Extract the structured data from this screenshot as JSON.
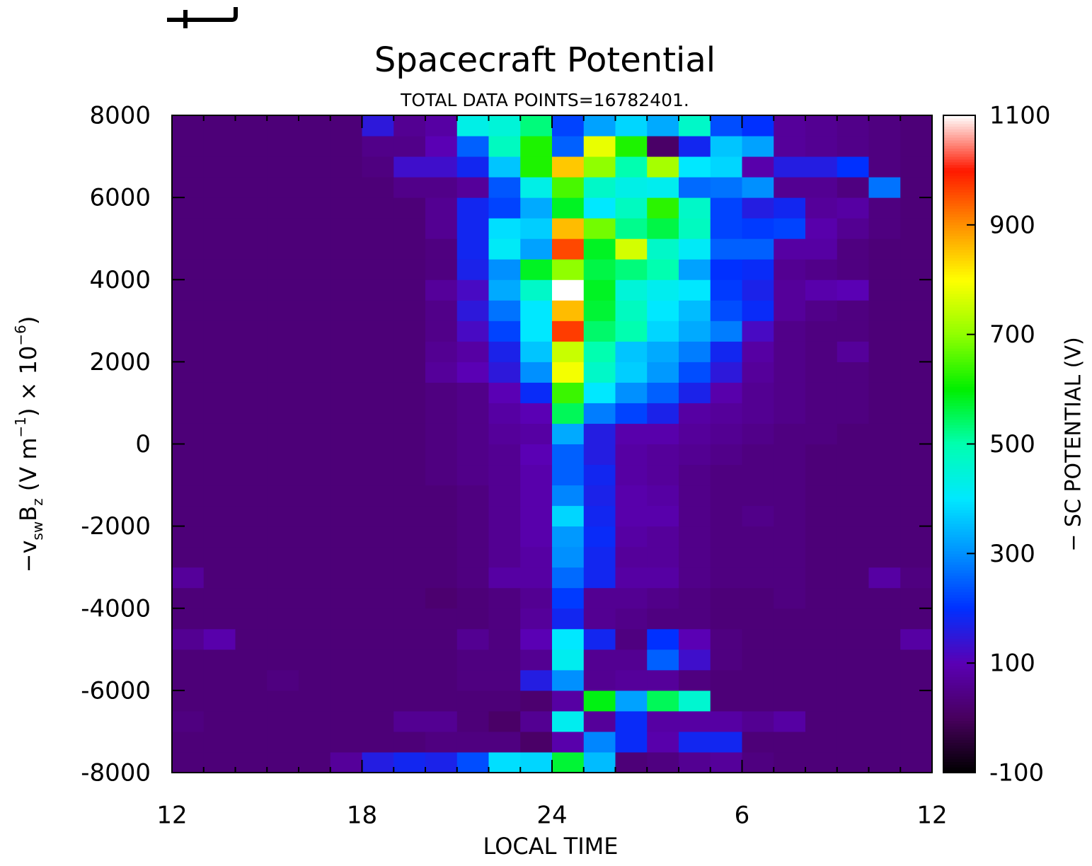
{
  "chart_data": {
    "type": "heatmap",
    "title": "Spacecraft Potential",
    "subtitle": "TOTAL DATA POINTS=16782401.",
    "xlabel": "LOCAL TIME",
    "ylabel": [
      "−v",
      "sw",
      "B",
      "z",
      " (V m",
      "−1",
      ") × 10",
      "−6",
      ")"
    ],
    "colorbar_label": "− SC POTENTIAL (V)",
    "xlim": [
      12,
      36
    ],
    "xticks": [
      12,
      18,
      24,
      {
        "value": 30,
        "label": "6"
      },
      {
        "value": 36,
        "label": "12"
      }
    ],
    "ylim": [
      -8000,
      8000
    ],
    "yticks": [
      -8000,
      -6000,
      -4000,
      -2000,
      0,
      2000,
      4000,
      6000,
      8000
    ],
    "zlim": [
      -100,
      1100
    ],
    "zticks": [
      -100,
      100,
      300,
      500,
      700,
      900,
      1100
    ],
    "colorscale": [
      "#000000",
      "#48005e",
      "#5a00b4",
      "#0030ff",
      "#0090ff",
      "#00e8ff",
      "#00ffb0",
      "#00f000",
      "#90ff00",
      "#ffff00",
      "#ff9000",
      "#ff1800",
      "#ffffff"
    ],
    "xbins": [
      12,
      13,
      14,
      15,
      16,
      17,
      18,
      19,
      20,
      21,
      22,
      23,
      24,
      25,
      26,
      27,
      28,
      29,
      30,
      31,
      32,
      33,
      34,
      35,
      36
    ],
    "ybins": [
      -8000,
      -7500,
      -7000,
      -6500,
      -6000,
      -5500,
      -5000,
      -4500,
      -4000,
      -3500,
      -3000,
      -2500,
      -2000,
      -1500,
      -1000,
      -500,
      0,
      500,
      1000,
      1500,
      2000,
      2500,
      3000,
      3500,
      4000,
      4500,
      5000,
      5500,
      6000,
      6500,
      7000,
      7500,
      8000
    ],
    "z": [
      [
        30,
        30,
        30,
        30,
        30,
        70,
        160,
        180,
        170,
        230,
        390,
        380,
        570,
        350,
        30,
        40,
        60,
        70,
        40,
        30,
        30,
        30,
        30,
        30
      ],
      [
        30,
        30,
        30,
        30,
        30,
        30,
        30,
        30,
        40,
        40,
        40,
        10,
        90,
        290,
        190,
        90,
        180,
        180,
        30,
        30,
        30,
        30,
        30,
        30
      ],
      [
        40,
        30,
        30,
        30,
        30,
        30,
        30,
        60,
        60,
        30,
        10,
        60,
        420,
        70,
        190,
        80,
        80,
        80,
        60,
        80,
        30,
        30,
        30,
        30
      ],
      [
        30,
        30,
        30,
        30,
        30,
        30,
        30,
        30,
        30,
        30,
        30,
        20,
        80,
        590,
        320,
        550,
        460,
        30,
        30,
        30,
        30,
        30,
        30,
        30
      ],
      [
        30,
        30,
        30,
        40,
        30,
        30,
        30,
        30,
        30,
        40,
        40,
        160,
        300,
        60,
        70,
        70,
        40,
        30,
        30,
        30,
        30,
        30,
        30,
        30
      ],
      [
        30,
        30,
        30,
        30,
        30,
        30,
        30,
        30,
        30,
        40,
        40,
        60,
        420,
        60,
        60,
        250,
        130,
        40,
        30,
        30,
        30,
        30,
        30,
        30
      ],
      [
        60,
        90,
        30,
        30,
        30,
        30,
        30,
        30,
        30,
        60,
        40,
        100,
        400,
        180,
        40,
        200,
        100,
        40,
        30,
        30,
        30,
        30,
        30,
        80
      ],
      [
        30,
        30,
        30,
        30,
        30,
        30,
        30,
        30,
        30,
        30,
        40,
        70,
        180,
        60,
        50,
        40,
        40,
        30,
        30,
        30,
        30,
        30,
        30,
        30
      ],
      [
        30,
        30,
        30,
        30,
        30,
        30,
        30,
        30,
        20,
        30,
        40,
        60,
        210,
        60,
        60,
        50,
        40,
        30,
        30,
        40,
        30,
        30,
        30,
        30
      ],
      [
        70,
        30,
        30,
        30,
        30,
        30,
        30,
        30,
        30,
        40,
        80,
        80,
        260,
        180,
        80,
        80,
        50,
        40,
        40,
        40,
        30,
        30,
        80,
        40
      ],
      [
        30,
        30,
        30,
        30,
        30,
        30,
        30,
        30,
        30,
        40,
        60,
        80,
        300,
        180,
        70,
        70,
        50,
        40,
        40,
        40,
        30,
        30,
        30,
        30
      ],
      [
        30,
        30,
        30,
        30,
        30,
        30,
        30,
        30,
        30,
        40,
        60,
        90,
        310,
        190,
        80,
        70,
        50,
        40,
        40,
        40,
        30,
        30,
        30,
        30
      ],
      [
        30,
        30,
        30,
        30,
        30,
        30,
        30,
        30,
        30,
        40,
        60,
        90,
        380,
        180,
        90,
        90,
        50,
        40,
        50,
        40,
        30,
        30,
        30,
        30
      ],
      [
        30,
        30,
        30,
        30,
        30,
        30,
        30,
        30,
        30,
        40,
        60,
        90,
        290,
        170,
        90,
        80,
        50,
        40,
        40,
        40,
        30,
        30,
        30,
        30
      ],
      [
        30,
        30,
        30,
        30,
        30,
        30,
        30,
        30,
        40,
        50,
        60,
        90,
        250,
        180,
        80,
        70,
        50,
        40,
        40,
        40,
        30,
        30,
        30,
        30
      ],
      [
        30,
        30,
        30,
        30,
        30,
        30,
        30,
        30,
        40,
        50,
        60,
        100,
        250,
        160,
        80,
        70,
        60,
        50,
        40,
        40,
        30,
        30,
        30,
        30
      ],
      [
        30,
        30,
        30,
        30,
        30,
        30,
        30,
        30,
        40,
        50,
        70,
        80,
        330,
        160,
        90,
        90,
        70,
        60,
        50,
        40,
        40,
        30,
        30,
        30
      ],
      [
        30,
        30,
        30,
        30,
        30,
        30,
        30,
        30,
        40,
        50,
        80,
        100,
        550,
        280,
        220,
        170,
        80,
        70,
        60,
        50,
        40,
        40,
        30,
        30
      ],
      [
        30,
        30,
        30,
        30,
        30,
        30,
        30,
        30,
        40,
        50,
        100,
        190,
        640,
        400,
        300,
        250,
        170,
        90,
        60,
        50,
        40,
        40,
        30,
        30
      ],
      [
        30,
        30,
        30,
        30,
        30,
        30,
        30,
        30,
        70,
        100,
        150,
        300,
        790,
        470,
        370,
        310,
        230,
        150,
        70,
        50,
        40,
        40,
        30,
        30
      ],
      [
        30,
        30,
        30,
        30,
        30,
        30,
        30,
        30,
        60,
        80,
        170,
        360,
        750,
        500,
        360,
        330,
        280,
        180,
        80,
        50,
        40,
        70,
        30,
        30
      ],
      [
        30,
        30,
        30,
        30,
        30,
        30,
        30,
        30,
        50,
        120,
        220,
        400,
        970,
        540,
        500,
        380,
        330,
        280,
        120,
        50,
        40,
        40,
        30,
        30
      ],
      [
        30,
        30,
        30,
        30,
        30,
        30,
        30,
        30,
        50,
        150,
        270,
        400,
        860,
        570,
        480,
        400,
        350,
        230,
        190,
        70,
        50,
        40,
        30,
        30
      ],
      [
        30,
        30,
        30,
        30,
        30,
        30,
        30,
        30,
        70,
        120,
        330,
        470,
        1100,
        580,
        450,
        420,
        400,
        210,
        170,
        70,
        90,
        100,
        30,
        30
      ],
      [
        30,
        30,
        30,
        30,
        30,
        30,
        30,
        30,
        40,
        170,
        300,
        580,
        700,
        560,
        530,
        500,
        320,
        200,
        190,
        60,
        50,
        40,
        30,
        30
      ],
      [
        30,
        30,
        30,
        30,
        30,
        30,
        30,
        30,
        40,
        180,
        410,
        320,
        960,
        580,
        760,
        470,
        410,
        250,
        250,
        80,
        80,
        40,
        30,
        30
      ],
      [
        30,
        30,
        30,
        30,
        30,
        30,
        30,
        30,
        60,
        180,
        390,
        370,
        860,
        680,
        520,
        560,
        480,
        220,
        210,
        220,
        90,
        60,
        40,
        30
      ],
      [
        30,
        30,
        30,
        30,
        30,
        30,
        30,
        30,
        60,
        180,
        220,
        330,
        580,
        400,
        480,
        630,
        470,
        220,
        160,
        180,
        70,
        80,
        40,
        30
      ],
      [
        30,
        30,
        30,
        30,
        30,
        30,
        30,
        50,
        50,
        70,
        240,
        430,
        650,
        470,
        430,
        420,
        260,
        270,
        300,
        60,
        60,
        40,
        270,
        30
      ],
      [
        30,
        30,
        30,
        30,
        30,
        30,
        40,
        130,
        130,
        180,
        360,
        620,
        850,
        700,
        500,
        720,
        400,
        380,
        90,
        160,
        160,
        200,
        40,
        30
      ],
      [
        30,
        30,
        30,
        30,
        30,
        30,
        50,
        50,
        100,
        250,
        480,
        620,
        250,
        780,
        620,
        10,
        180,
        360,
        320,
        70,
        60,
        50,
        40,
        30
      ],
      [
        30,
        30,
        30,
        30,
        30,
        30,
        150,
        60,
        80,
        430,
        450,
        530,
        220,
        320,
        380,
        330,
        470,
        230,
        200,
        70,
        60,
        50,
        40,
        30
      ]
    ]
  }
}
